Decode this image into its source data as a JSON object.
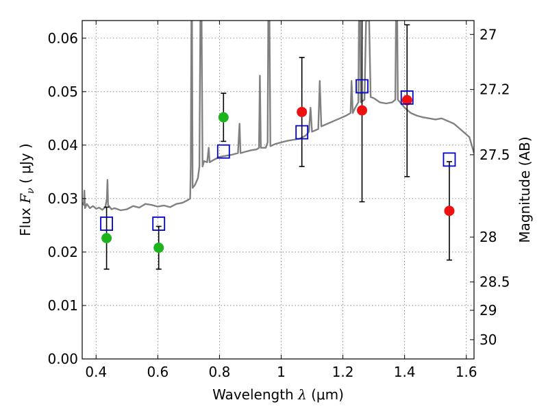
{
  "chart_data": {
    "type": "scatter",
    "xlabel": "Wavelength  λ (μm)",
    "ylabel": "Flux  F_ν  ( μJy )",
    "ylabel_parts": {
      "flux": "Flux",
      "symbol": "F",
      "subscript": "ν",
      "unit": "( μJy )"
    },
    "xlabel_parts": {
      "text": "Wavelength",
      "symbol": "λ",
      "unit": "(μm)"
    },
    "right_label": "Magnitude (AB)",
    "xlim": [
      0.355,
      1.625
    ],
    "ylim": [
      0,
      0.0633
    ],
    "grid": true,
    "x_ticks": [
      {
        "v": 0.4,
        "label": "0.4"
      },
      {
        "v": 0.6,
        "label": "0.6"
      },
      {
        "v": 0.8,
        "label": "0.8"
      },
      {
        "v": 1.0,
        "label": "1"
      },
      {
        "v": 1.2,
        "label": "1.2"
      },
      {
        "v": 1.4,
        "label": "1.4"
      },
      {
        "v": 1.6,
        "label": "1.6"
      }
    ],
    "y_ticks": [
      {
        "v": 0.0,
        "label": "0.00"
      },
      {
        "v": 0.01,
        "label": "0.01"
      },
      {
        "v": 0.02,
        "label": "0.02"
      },
      {
        "v": 0.03,
        "label": "0.03"
      },
      {
        "v": 0.04,
        "label": "0.04"
      },
      {
        "v": 0.05,
        "label": "0.05"
      },
      {
        "v": 0.06,
        "label": "0.06"
      }
    ],
    "right_ticks": [
      {
        "flux": 0.0607,
        "label": "27"
      },
      {
        "flux": 0.0504,
        "label": "27.2"
      },
      {
        "flux": 0.0382,
        "label": "27.5"
      },
      {
        "flux": 0.0228,
        "label": "28"
      },
      {
        "flux": 0.0144,
        "label": "28.5"
      },
      {
        "flux": 0.0091,
        "label": "29"
      },
      {
        "flux": 0.0036,
        "label": "30"
      }
    ],
    "colors": {
      "spectrum": "#808080",
      "green": "#1db31d",
      "red": "#ee1111",
      "model": "#0000cc",
      "error": "#000000"
    },
    "spectrum": [
      [
        0.355,
        0.0292
      ],
      [
        0.36,
        0.0288
      ],
      [
        0.362,
        0.0315
      ],
      [
        0.364,
        0.0282
      ],
      [
        0.37,
        0.029
      ],
      [
        0.38,
        0.0282
      ],
      [
        0.39,
        0.0286
      ],
      [
        0.4,
        0.0281
      ],
      [
        0.41,
        0.0283
      ],
      [
        0.42,
        0.0279
      ],
      [
        0.43,
        0.0284
      ],
      [
        0.435,
        0.03
      ],
      [
        0.437,
        0.0335
      ],
      [
        0.439,
        0.0288
      ],
      [
        0.45,
        0.028
      ],
      [
        0.46,
        0.0282
      ],
      [
        0.48,
        0.0278
      ],
      [
        0.5,
        0.028
      ],
      [
        0.52,
        0.0286
      ],
      [
        0.54,
        0.0283
      ],
      [
        0.56,
        0.029
      ],
      [
        0.58,
        0.0288
      ],
      [
        0.6,
        0.0285
      ],
      [
        0.62,
        0.0287
      ],
      [
        0.64,
        0.0284
      ],
      [
        0.66,
        0.029
      ],
      [
        0.68,
        0.0292
      ],
      [
        0.7,
        0.0298
      ],
      [
        0.705,
        0.03
      ],
      [
        0.707,
        0.036
      ],
      [
        0.709,
        0.0633
      ],
      [
        0.711,
        0.0633
      ],
      [
        0.713,
        0.032
      ],
      [
        0.72,
        0.0325
      ],
      [
        0.73,
        0.0338
      ],
      [
        0.735,
        0.036
      ],
      [
        0.738,
        0.0633
      ],
      [
        0.742,
        0.0633
      ],
      [
        0.745,
        0.036
      ],
      [
        0.75,
        0.037
      ],
      [
        0.76,
        0.0368
      ],
      [
        0.765,
        0.0395
      ],
      [
        0.768,
        0.0368
      ],
      [
        0.78,
        0.0372
      ],
      [
        0.8,
        0.0378
      ],
      [
        0.82,
        0.038
      ],
      [
        0.84,
        0.0382
      ],
      [
        0.86,
        0.0385
      ],
      [
        0.865,
        0.044
      ],
      [
        0.868,
        0.0385
      ],
      [
        0.88,
        0.0387
      ],
      [
        0.9,
        0.039
      ],
      [
        0.92,
        0.0392
      ],
      [
        0.928,
        0.0395
      ],
      [
        0.931,
        0.053
      ],
      [
        0.934,
        0.0395
      ],
      [
        0.95,
        0.0395
      ],
      [
        0.956,
        0.0405
      ],
      [
        0.958,
        0.0633
      ],
      [
        0.962,
        0.0633
      ],
      [
        0.965,
        0.0398
      ],
      [
        0.98,
        0.0402
      ],
      [
        1.0,
        0.0405
      ],
      [
        1.02,
        0.0408
      ],
      [
        1.04,
        0.041
      ],
      [
        1.06,
        0.0412
      ],
      [
        1.08,
        0.0418
      ],
      [
        1.09,
        0.0425
      ],
      [
        1.095,
        0.047
      ],
      [
        1.1,
        0.0425
      ],
      [
        1.12,
        0.043
      ],
      [
        1.125,
        0.052
      ],
      [
        1.13,
        0.0435
      ],
      [
        1.15,
        0.044
      ],
      [
        1.17,
        0.0445
      ],
      [
        1.19,
        0.045
      ],
      [
        1.21,
        0.0455
      ],
      [
        1.225,
        0.046
      ],
      [
        1.228,
        0.052
      ],
      [
        1.232,
        0.046
      ],
      [
        1.24,
        0.047
      ],
      [
        1.25,
        0.048
      ],
      [
        1.252,
        0.0633
      ],
      [
        1.256,
        0.0633
      ],
      [
        1.258,
        0.048
      ],
      [
        1.27,
        0.0485
      ],
      [
        1.275,
        0.0633
      ],
      [
        1.285,
        0.0633
      ],
      [
        1.29,
        0.049
      ],
      [
        1.3,
        0.0488
      ],
      [
        1.32,
        0.048
      ],
      [
        1.34,
        0.0478
      ],
      [
        1.36,
        0.048
      ],
      [
        1.37,
        0.0485
      ],
      [
        1.372,
        0.0633
      ],
      [
        1.376,
        0.0633
      ],
      [
        1.378,
        0.0485
      ],
      [
        1.4,
        0.047
      ],
      [
        1.42,
        0.046
      ],
      [
        1.44,
        0.0455
      ],
      [
        1.46,
        0.0452
      ],
      [
        1.48,
        0.045
      ],
      [
        1.5,
        0.0448
      ],
      [
        1.52,
        0.045
      ],
      [
        1.54,
        0.0445
      ],
      [
        1.56,
        0.044
      ],
      [
        1.58,
        0.043
      ],
      [
        1.6,
        0.042
      ],
      [
        1.61,
        0.0415
      ],
      [
        1.625,
        0.0385
      ]
    ],
    "green_points": [
      {
        "x": 0.434,
        "y": 0.0226,
        "err_low": 0.0168,
        "err_high": 0.0284
      },
      {
        "x": 0.603,
        "y": 0.0208,
        "err_low": 0.0168,
        "err_high": 0.0248
      },
      {
        "x": 0.813,
        "y": 0.0452,
        "err_low": 0.0407,
        "err_high": 0.0497
      }
    ],
    "red_points": [
      {
        "x": 1.067,
        "y": 0.0462,
        "err_low": 0.036,
        "err_high": 0.0564
      },
      {
        "x": 1.262,
        "y": 0.0465,
        "err_low": 0.0294,
        "err_high": 0.0633
      },
      {
        "x": 1.408,
        "y": 0.0484,
        "err_low": 0.0341,
        "err_high": 0.0625
      },
      {
        "x": 1.545,
        "y": 0.0277,
        "err_low": 0.0185,
        "err_high": 0.0369
      }
    ],
    "model_points": [
      {
        "x": 0.434,
        "y": 0.0253
      },
      {
        "x": 0.603,
        "y": 0.0253
      },
      {
        "x": 0.813,
        "y": 0.0388
      },
      {
        "x": 1.067,
        "y": 0.0424
      },
      {
        "x": 1.262,
        "y": 0.051
      },
      {
        "x": 1.408,
        "y": 0.0489
      },
      {
        "x": 1.545,
        "y": 0.0373
      }
    ]
  }
}
